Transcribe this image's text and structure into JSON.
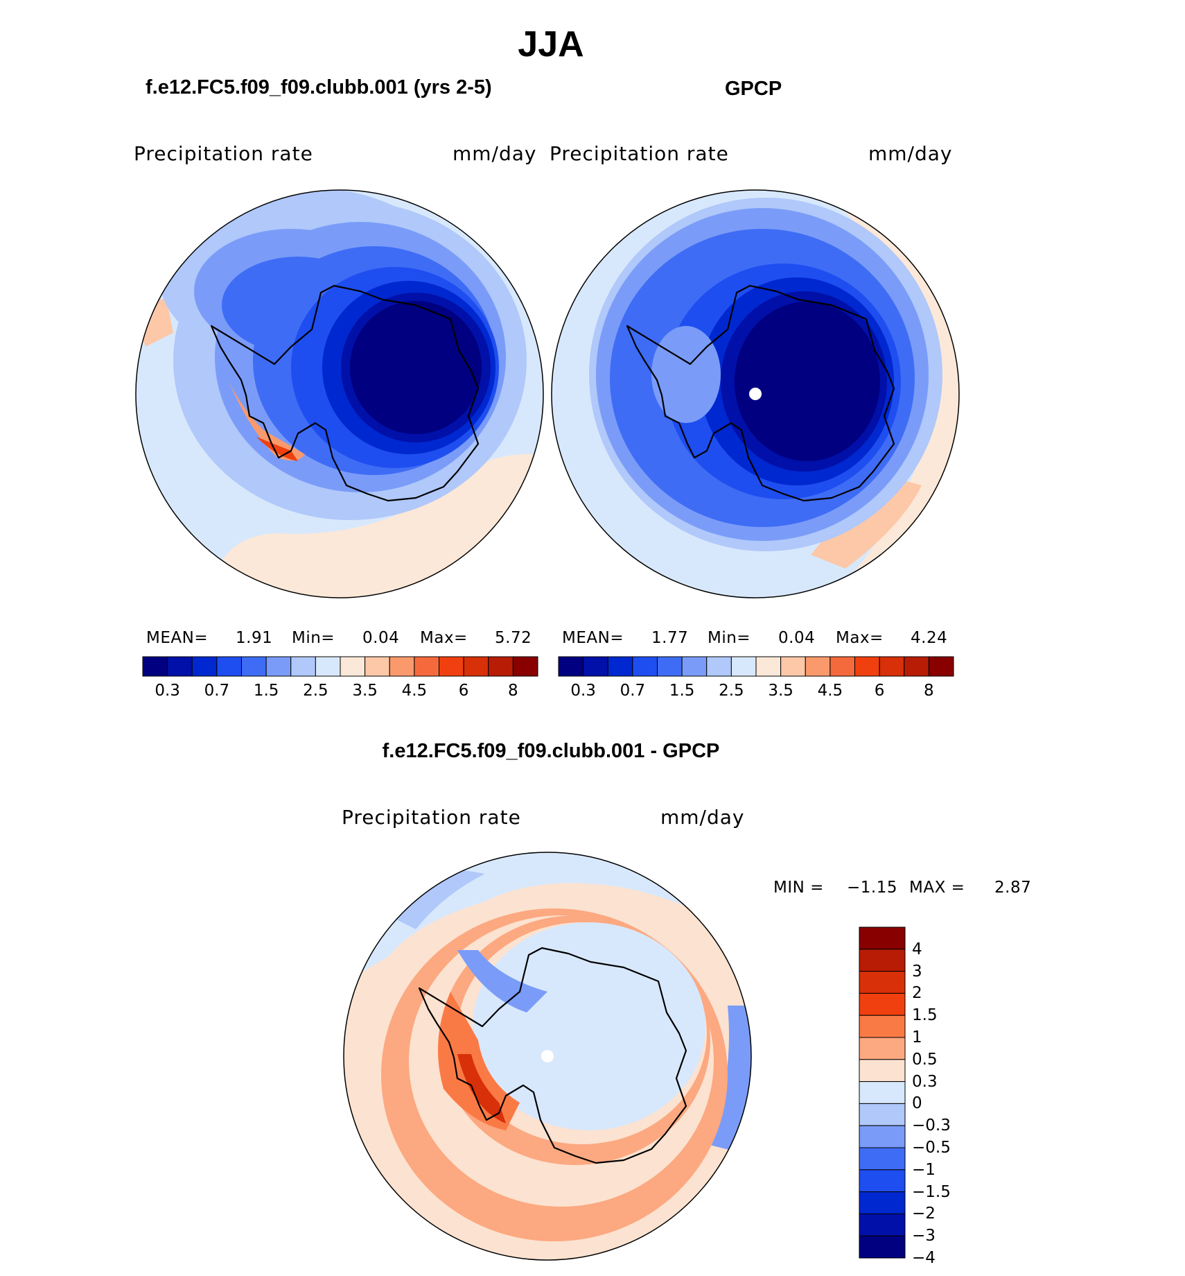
{
  "season": "JJA",
  "panels": {
    "left": {
      "title": "f.e12.FC5.f09_f09.clubb.001 (yrs 2-5)",
      "variable": "Precipitation  rate",
      "units": "mm/day",
      "stats": {
        "mean_label": "MEAN=",
        "mean": "1.91",
        "min_label": "Min=",
        "min": "0.04",
        "max_label": "Max=",
        "max": "5.72"
      }
    },
    "right": {
      "title": "GPCP",
      "variable": "Precipitation  rate",
      "units": "mm/day",
      "stats": {
        "mean_label": "MEAN=",
        "mean": "1.77",
        "min_label": "Min=",
        "min": "0.04",
        "max_label": "Max=",
        "max": "4.24"
      }
    },
    "diff": {
      "title": "f.e12.FC5.f09_f09.clubb.001 - GPCP",
      "variable": "Precipitation  rate",
      "units": "mm/day",
      "stats": {
        "min_label": "MIN =",
        "min": "−1.15",
        "max_label": "MAX =",
        "max": "2.87"
      }
    }
  },
  "colorbar_abs": {
    "labels": [
      "0.3",
      "0.7",
      "1.5",
      "2.5",
      "3.5",
      "4.5",
      "6",
      "8"
    ],
    "colors": [
      "#000080",
      "#0010a8",
      "#0028d0",
      "#1e4ef0",
      "#3f6cf5",
      "#7a9cf8",
      "#b0c8fa",
      "#d8e8fc",
      "#fce8d8",
      "#fcc8a8",
      "#fa9a6c",
      "#f56a3c",
      "#f04010",
      "#d83008",
      "#b81c04",
      "#880000"
    ]
  },
  "colorbar_diff": {
    "labels": [
      "4",
      "3",
      "2",
      "1.5",
      "1",
      "0.5",
      "0.3",
      "0",
      "−0.3",
      "−0.5",
      "−1",
      "−1.5",
      "−2",
      "−3",
      "−4"
    ],
    "colors": [
      "#880000",
      "#b81c04",
      "#d83008",
      "#f04010",
      "#fa7a46",
      "#fca880",
      "#fce2d0",
      "#d8e8fc",
      "#b0c8fa",
      "#7a9cf8",
      "#3f6cf5",
      "#1e4ef0",
      "#0028d0",
      "#0010a8",
      "#000080"
    ]
  }
}
